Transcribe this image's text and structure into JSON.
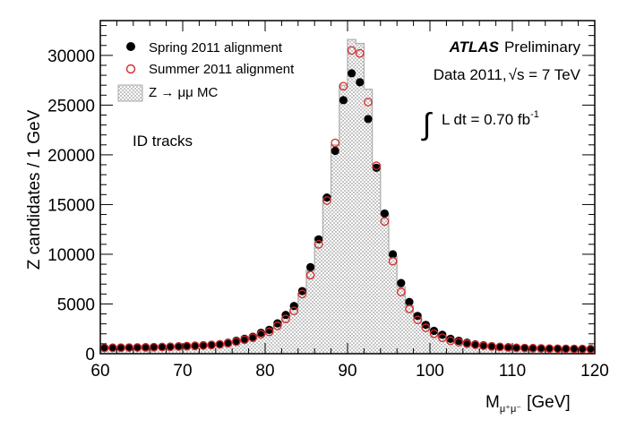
{
  "chart_data": {
    "type": "histogram-with-points",
    "xlabel": "M",
    "xlabel_sub": "μ⁺μ⁻",
    "xlabel_unit": "[GeV]",
    "ylabel": "Z candidates / 1 GeV",
    "xlim": [
      60,
      120
    ],
    "ylim": [
      0,
      33500
    ],
    "x_ticks": [
      "60",
      "70",
      "80",
      "90",
      "100",
      "110",
      "120"
    ],
    "y_ticks": [
      "0",
      "5000",
      "10000",
      "15000",
      "20000",
      "25000",
      "30000"
    ],
    "grid": false,
    "legend_position": "top-left",
    "bin_width": 1,
    "bin_centers_start": 60.5,
    "series": [
      {
        "name": "Spring 2011 alignment",
        "style": "filled-circle",
        "color": "#000000",
        "values": [
          600,
          610,
          620,
          630,
          640,
          650,
          670,
          690,
          710,
          740,
          780,
          810,
          850,
          900,
          960,
          1100,
          1300,
          1500,
          1700,
          2100,
          2400,
          3050,
          3900,
          4800,
          6300,
          8700,
          11500,
          15700,
          20400,
          25500,
          28200,
          27300,
          23600,
          18700,
          14100,
          10000,
          7100,
          5200,
          3800,
          2900,
          2300,
          1900,
          1500,
          1300,
          1100,
          950,
          850,
          760,
          700,
          650,
          600,
          580,
          560,
          540,
          520,
          510,
          500,
          490,
          480,
          470
        ]
      },
      {
        "name": "Summer 2011 alignment",
        "style": "open-circle",
        "color": "#d42a2a",
        "values": [
          580,
          590,
          600,
          610,
          620,
          630,
          650,
          670,
          690,
          720,
          750,
          780,
          820,
          870,
          930,
          1050,
          1200,
          1400,
          1600,
          1950,
          2200,
          2800,
          3500,
          4300,
          6000,
          7900,
          11000,
          15400,
          21200,
          26900,
          30500,
          30200,
          25300,
          18900,
          13300,
          9300,
          6200,
          4500,
          3400,
          2600,
          2000,
          1600,
          1300,
          1150,
          1000,
          900,
          800,
          730,
          680,
          630,
          590,
          570,
          550,
          530,
          510,
          500,
          490,
          480,
          470,
          460
        ]
      },
      {
        "name": "Z → μμ MC",
        "style": "hatched-histogram",
        "color": "#b0b0b0",
        "values": [
          560,
          570,
          580,
          590,
          600,
          610,
          630,
          650,
          670,
          700,
          730,
          760,
          800,
          850,
          910,
          1020,
          1170,
          1370,
          1580,
          1900,
          2250,
          2850,
          3600,
          4500,
          6100,
          8400,
          11700,
          15800,
          21000,
          27000,
          31600,
          31200,
          26600,
          19000,
          14000,
          9800,
          6700,
          4800,
          3600,
          2700,
          2100,
          1700,
          1400,
          1200,
          1050,
          920,
          820,
          750,
          690,
          640,
          590,
          570,
          550,
          530,
          510,
          500,
          490,
          480,
          470,
          460
        ]
      }
    ],
    "annotations": {
      "experiment": "ATLAS",
      "status": "Preliminary",
      "data_label": "Data 2011,",
      "energy_label": "s = 7 TeV",
      "lumi_label": "L dt = 0.70 fb",
      "lumi_exp": "-1",
      "sample_label": "ID tracks"
    }
  }
}
